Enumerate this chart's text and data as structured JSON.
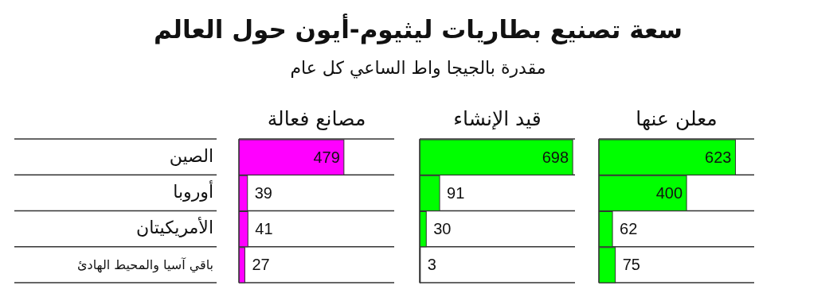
{
  "chart_data": [
    {
      "type": "bar",
      "orientation": "horizontal",
      "title": "مصانع فعالة",
      "annotations": [
        "سعة تصنيع بطاريات ليثيوم-أيون حول العالم",
        "مقدرة بالجيجا واط الساعي كل عام"
      ],
      "categories": [
        "الصين",
        "أوروبا",
        "الأمريكيتان",
        "باقي آسيا والمحيط الهادئ"
      ],
      "values": [
        479,
        39,
        41,
        27
      ],
      "color": "#ff00ff",
      "data_labels": true,
      "grid": "y",
      "tick_labels": "y"
    },
    {
      "type": "bar",
      "orientation": "horizontal",
      "title": "قيد الإنشاء",
      "values": [
        698,
        91,
        30,
        3
      ],
      "color": "#00ff00",
      "data_labels": true,
      "grid": "y",
      "tick_labels": false
    },
    {
      "type": "bar",
      "orientation": "horizontal",
      "title": "معلن عنها",
      "values": [
        623,
        400,
        62,
        75
      ],
      "color": "#00ff00",
      "data_labels": true,
      "grid": "y",
      "tick_labels": false
    }
  ]
}
